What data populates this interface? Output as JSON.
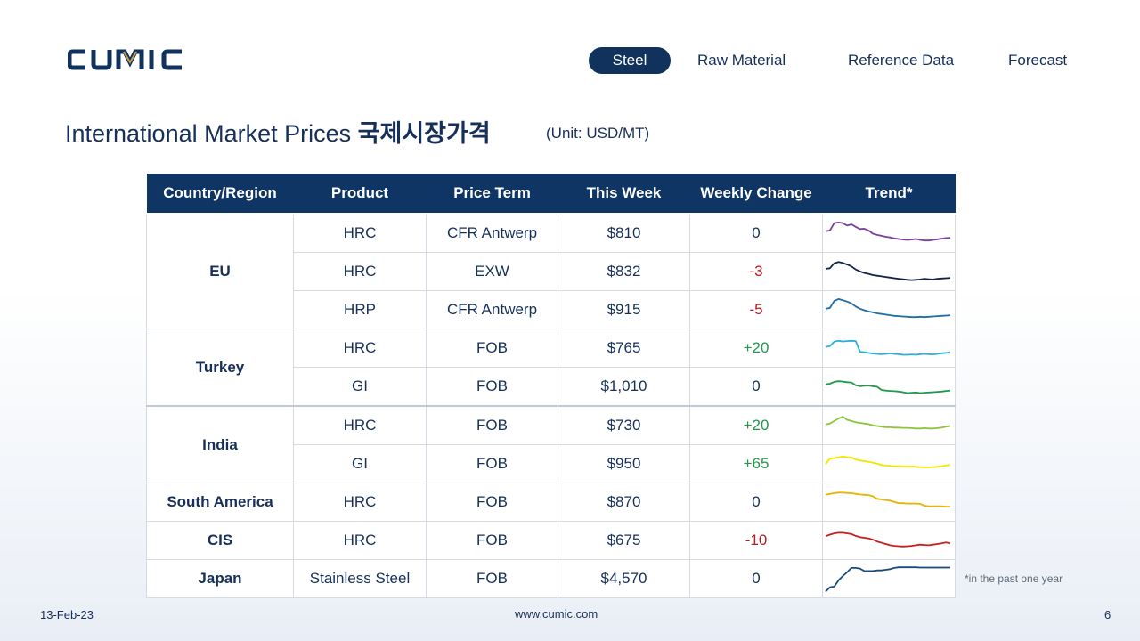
{
  "brand": {
    "logo_text": "CUMIC",
    "color": "#10325c"
  },
  "nav": [
    {
      "label": "Steel",
      "active": true
    },
    {
      "label": "Raw Material",
      "active": false
    },
    {
      "label": "Reference Data",
      "active": false
    },
    {
      "label": "Forecast",
      "active": false
    }
  ],
  "page": {
    "title_en": "International Market Prices",
    "title_ko": "국제시장가격",
    "unit": "(Unit: USD/MT)"
  },
  "table": {
    "headers": [
      "Country/Region",
      "Product",
      "Price Term",
      "This Week",
      "Weekly Change",
      "Trend*"
    ],
    "rows": [
      {
        "region": "EU",
        "product": "HRC",
        "term": "CFR Antwerp",
        "price": "$810",
        "change": "0",
        "trend_color": "#7b3fa0",
        "trend": [
          58,
          60,
          84,
          86,
          84,
          76,
          80,
          72,
          65,
          66,
          60,
          50,
          46,
          43,
          40,
          38,
          35,
          33,
          31,
          30,
          31,
          33,
          30,
          28,
          28,
          30,
          32,
          34,
          36,
          37
        ]
      },
      {
        "region": "EU",
        "product": "HRC",
        "term": "EXW",
        "price": "$832",
        "change": "-3",
        "trend_color": "#14224a",
        "trend": [
          60,
          62,
          78,
          82,
          79,
          74,
          68,
          58,
          52,
          47,
          44,
          40,
          38,
          36,
          34,
          32,
          30,
          28,
          27,
          25,
          24,
          25,
          26,
          28,
          27,
          26,
          28,
          29,
          30,
          31
        ]
      },
      {
        "region": "EU",
        "product": "HRP",
        "term": "CFR Antwerp",
        "price": "$915",
        "change": "-5",
        "trend_color": "#1e6fa8",
        "trend": [
          55,
          57,
          80,
          86,
          82,
          78,
          72,
          62,
          55,
          50,
          46,
          43,
          40,
          38,
          36,
          34,
          32,
          31,
          30,
          29,
          28,
          28,
          29,
          28,
          29,
          30,
          31,
          32,
          33,
          34
        ]
      },
      {
        "region": "Turkey",
        "product": "HRC",
        "term": "FOB",
        "price": "$765",
        "change": "+20",
        "trend_color": "#2ab0d8",
        "trend": [
          55,
          58,
          72,
          75,
          73,
          74,
          75,
          74,
          40,
          38,
          36,
          34,
          33,
          32,
          33,
          35,
          33,
          32,
          30,
          30,
          31,
          30,
          32,
          33,
          32,
          31,
          33,
          35,
          36,
          38
        ]
      },
      {
        "region": "Turkey",
        "product": "GI",
        "term": "FOB",
        "price": "$1,010",
        "change": "0",
        "trend_color": "#1e9a4a",
        "trend": [
          58,
          60,
          66,
          68,
          67,
          65,
          64,
          55,
          52,
          53,
          54,
          52,
          50,
          40,
          38,
          37,
          36,
          35,
          33,
          30,
          31,
          32,
          30,
          31,
          32,
          33,
          34,
          35,
          37,
          38
        ]
      },
      {
        "region": "India",
        "product": "HRC",
        "term": "FOB",
        "price": "$730",
        "change": "+20",
        "trend_color": "#8cc63f",
        "trend": [
          55,
          58,
          66,
          74,
          80,
          70,
          66,
          62,
          60,
          58,
          56,
          52,
          50,
          48,
          46,
          46,
          45,
          45,
          44,
          44,
          43,
          42,
          42,
          43,
          42,
          42,
          43,
          45,
          48,
          50
        ]
      },
      {
        "region": "India",
        "product": "GI",
        "term": "FOB",
        "price": "$950",
        "change": "+65",
        "trend_color": "#f2e500",
        "trend": [
          50,
          68,
          70,
          72,
          75,
          73,
          72,
          65,
          62,
          60,
          58,
          55,
          52,
          48,
          46,
          45,
          44,
          44,
          43,
          42,
          43,
          42,
          41,
          40,
          40,
          41,
          42,
          44,
          46,
          48
        ]
      },
      {
        "region": "South America",
        "product": "HRC",
        "term": "FOB",
        "price": "$870",
        "change": "0",
        "trend_color": "#e8b400",
        "trend": [
          75,
          78,
          80,
          82,
          82,
          81,
          80,
          78,
          76,
          75,
          74,
          70,
          62,
          60,
          58,
          56,
          52,
          48,
          48,
          47,
          47,
          47,
          46,
          40,
          38,
          38,
          38,
          38,
          37,
          37
        ]
      },
      {
        "region": "CIS",
        "product": "HRC",
        "term": "FOB",
        "price": "$675",
        "change": "-10",
        "trend_color": "#c81f1f",
        "trend": [
          65,
          70,
          74,
          76,
          76,
          74,
          72,
          66,
          62,
          60,
          58,
          54,
          48,
          44,
          40,
          36,
          34,
          33,
          32,
          33,
          34,
          36,
          38,
          37,
          36,
          38,
          40,
          42,
          45,
          42
        ]
      },
      {
        "region": "Japan",
        "product": "Stainless Steel",
        "term": "FOB",
        "price": "$4,570",
        "change": "0",
        "trend_color": "#1a4a7a",
        "trend": [
          10,
          24,
          26,
          46,
          60,
          72,
          86,
          86,
          84,
          76,
          76,
          76,
          78,
          78,
          80,
          82,
          86,
          88,
          88,
          88,
          88,
          88,
          87,
          87,
          87,
          87,
          87,
          87,
          87,
          87
        ]
      }
    ],
    "footnote": "*in the past one year"
  },
  "footer": {
    "date": "13-Feb-23",
    "url": "www.cumic.com",
    "page": "6"
  }
}
